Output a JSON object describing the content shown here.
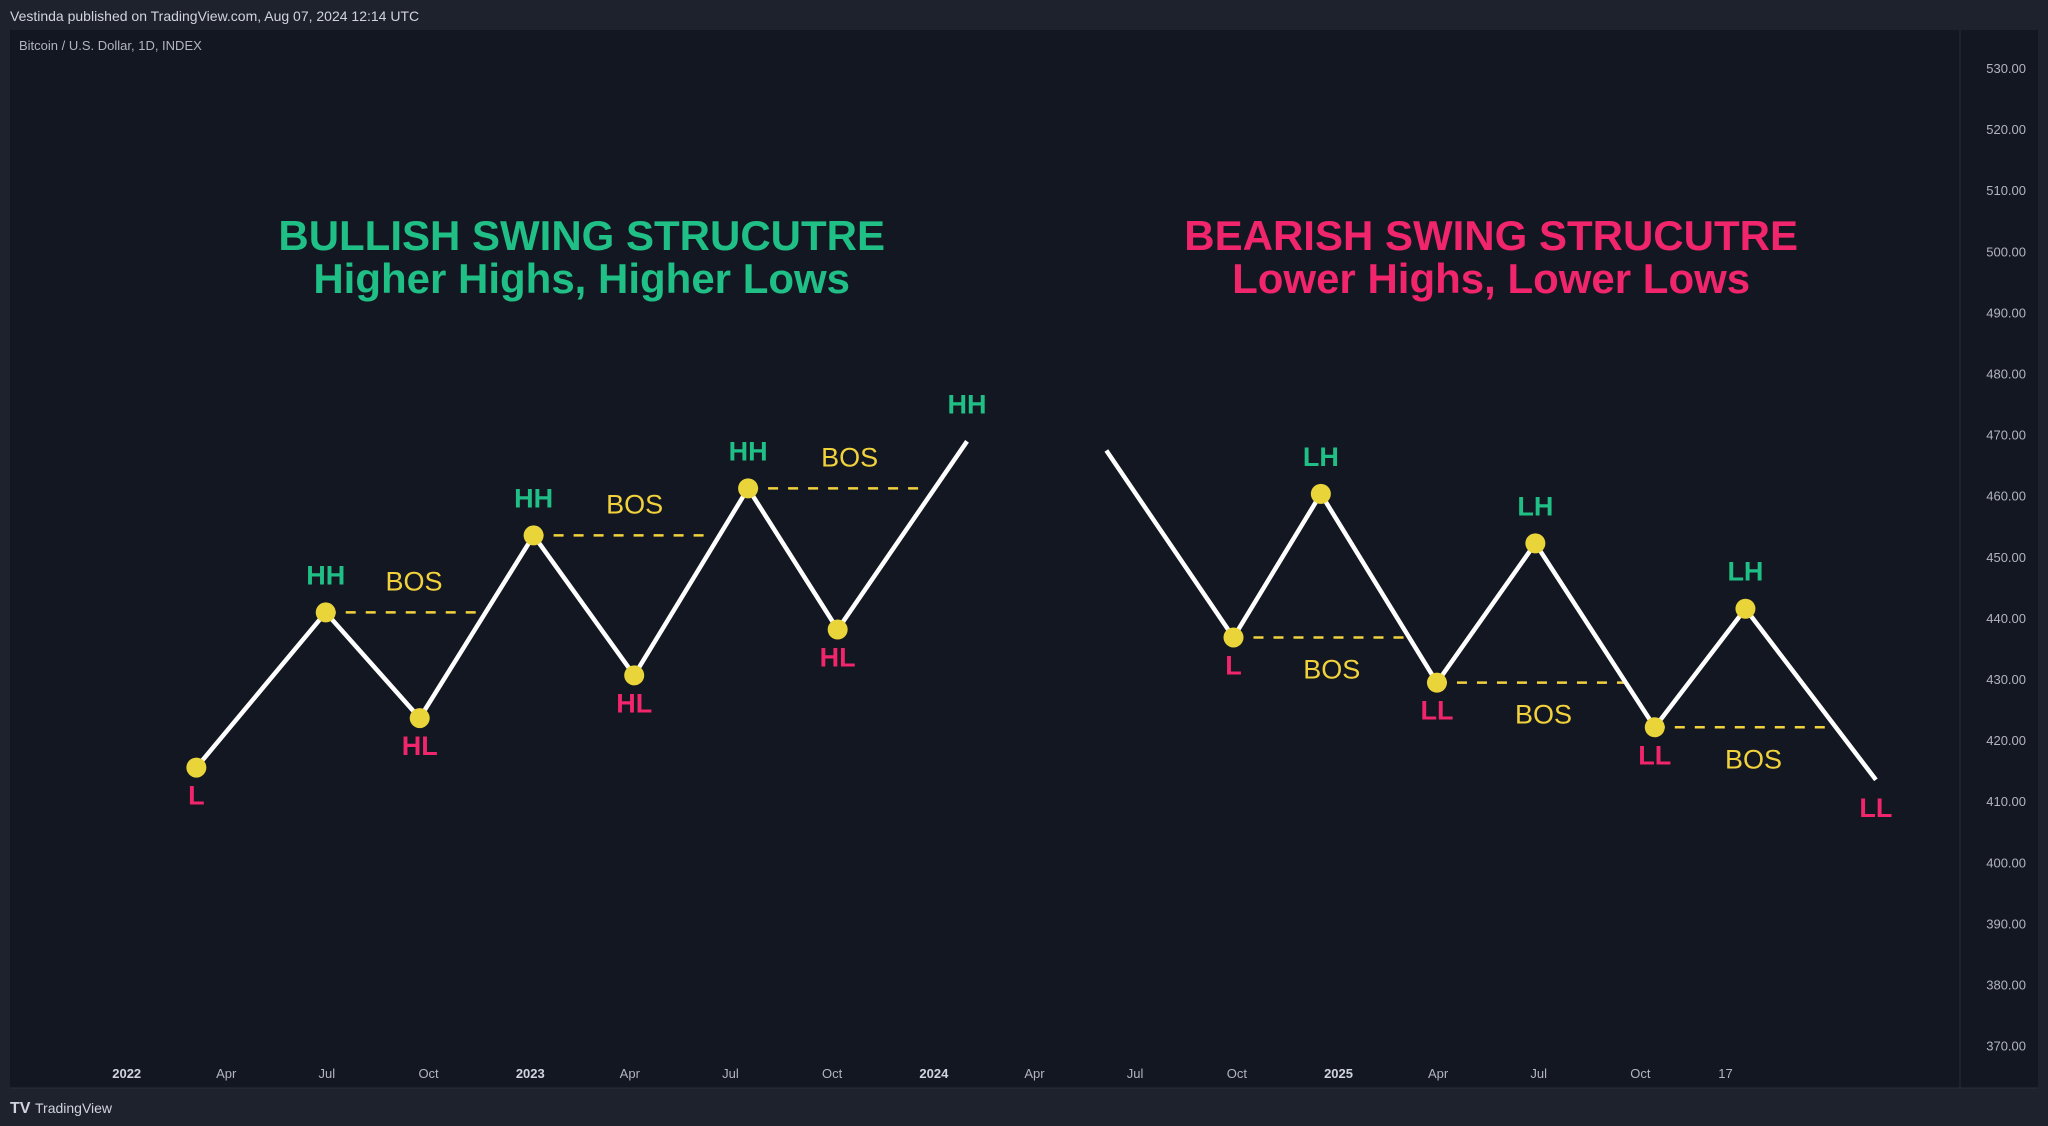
{
  "header": {
    "published": "Vestinda published on TradingView.com, Aug 07, 2024 12:14 UTC"
  },
  "chart": {
    "symbol": "Bitcoin / U.S. Dollar, 1D, INDEX"
  },
  "footer": {
    "brand": "TradingView",
    "logo_text": "TV"
  },
  "colors": {
    "background": "#131722",
    "frame": "#1e222d",
    "bullish": "#1fbf86",
    "bearish": "#f0256b",
    "bos": "#f2d23c",
    "line": "#ffffff",
    "dot": "#e9d43a"
  },
  "chart_data": {
    "type": "line",
    "price_axis": {
      "ylim": [
        365,
        535
      ],
      "ticks": [
        "530.00",
        "520.00",
        "510.00",
        "500.00",
        "490.00",
        "480.00",
        "470.00",
        "460.00",
        "450.00",
        "440.00",
        "430.00",
        "420.00",
        "410.00",
        "400.00",
        "390.00",
        "380.00",
        "370.00"
      ]
    },
    "time_axis": {
      "ticks": [
        {
          "label": "2022",
          "date": "2022-01-01",
          "bold": true
        },
        {
          "label": "Apr",
          "date": "2022-04-01"
        },
        {
          "label": "Jul",
          "date": "2022-07-01"
        },
        {
          "label": "Oct",
          "date": "2022-10-01"
        },
        {
          "label": "2023",
          "date": "2023-01-01",
          "bold": true
        },
        {
          "label": "Apr",
          "date": "2023-04-01"
        },
        {
          "label": "Jul",
          "date": "2023-07-01"
        },
        {
          "label": "Oct",
          "date": "2023-10-01"
        },
        {
          "label": "2024",
          "date": "2024-01-01",
          "bold": true
        },
        {
          "label": "Apr",
          "date": "2024-04-01"
        },
        {
          "label": "Jul",
          "date": "2024-07-01"
        },
        {
          "label": "Oct",
          "date": "2024-10-01"
        },
        {
          "label": "2025",
          "date": "2025-01-01",
          "bold": true
        },
        {
          "label": "Apr",
          "date": "2025-04-01"
        },
        {
          "label": "Jul",
          "date": "2025-07-01"
        },
        {
          "label": "Oct",
          "date": "2025-10-01"
        },
        {
          "label": "17",
          "date": "2025-12-17"
        }
      ]
    },
    "series": [
      {
        "title": "BULLISH SWING STRUCUTRE",
        "subtitle": "Higher Highs, Higher Lows",
        "color_key": "bullish",
        "points": [
          {
            "date": "2022-03-05",
            "price": 415.5,
            "label": "L",
            "kind": "low",
            "dot": true
          },
          {
            "date": "2022-06-30",
            "price": 440.9,
            "label": "HH",
            "kind": "high",
            "dot": true
          },
          {
            "date": "2022-09-23",
            "price": 423.6,
            "label": "HL",
            "kind": "low",
            "dot": true
          },
          {
            "date": "2023-01-04",
            "price": 453.5,
            "label": "HH",
            "kind": "high",
            "dot": true
          },
          {
            "date": "2023-04-05",
            "price": 430.6,
            "label": "HL",
            "kind": "low",
            "dot": true
          },
          {
            "date": "2023-07-17",
            "price": 461.2,
            "label": "HH",
            "kind": "high",
            "dot": true
          },
          {
            "date": "2023-10-06",
            "price": 438.1,
            "label": "HL",
            "kind": "low",
            "dot": true
          },
          {
            "date": "2024-01-31",
            "price": 468.9,
            "label": "HH",
            "kind": "high",
            "dot": false
          }
        ],
        "bos": [
          {
            "label": "BOS",
            "from_point": 1,
            "end_date": "2022-11-15",
            "side": "above"
          },
          {
            "label": "BOS",
            "from_point": 3,
            "end_date": "2023-06-14",
            "side": "above"
          },
          {
            "label": "BOS",
            "from_point": 5,
            "end_date": "2023-12-26",
            "side": "above"
          }
        ]
      },
      {
        "title": "BEARISH SWING STRUCUTRE",
        "subtitle": "Lower Highs, Lower Lows",
        "color_key": "bearish",
        "points": [
          {
            "date": "2024-06-05",
            "price": 467.4,
            "label": "",
            "kind": "high",
            "dot": false
          },
          {
            "date": "2024-09-28",
            "price": 436.8,
            "label": "L",
            "kind": "low",
            "dot": true
          },
          {
            "date": "2024-12-16",
            "price": 460.3,
            "label": "LH",
            "kind": "high",
            "dot": true
          },
          {
            "date": "2025-03-31",
            "price": 429.4,
            "label": "LL",
            "kind": "low",
            "dot": true
          },
          {
            "date": "2025-06-28",
            "price": 452.2,
            "label": "LH",
            "kind": "high",
            "dot": true
          },
          {
            "date": "2025-10-14",
            "price": 422.1,
            "label": "LL",
            "kind": "low",
            "dot": true
          },
          {
            "date": "2026-01-04",
            "price": 441.5,
            "label": "LH",
            "kind": "high",
            "dot": true
          },
          {
            "date": "2026-05-02",
            "price": 413.5,
            "label": "LL",
            "kind": "low",
            "dot": false
          }
        ],
        "bos": [
          {
            "label": "BOS",
            "from_point": 1,
            "end_date": "2025-03-03",
            "side": "below"
          },
          {
            "label": "BOS",
            "from_point": 3,
            "end_date": "2025-09-18",
            "side": "below"
          },
          {
            "label": "BOS",
            "from_point": 5,
            "end_date": "2026-03-20",
            "side": "below"
          }
        ]
      }
    ]
  }
}
